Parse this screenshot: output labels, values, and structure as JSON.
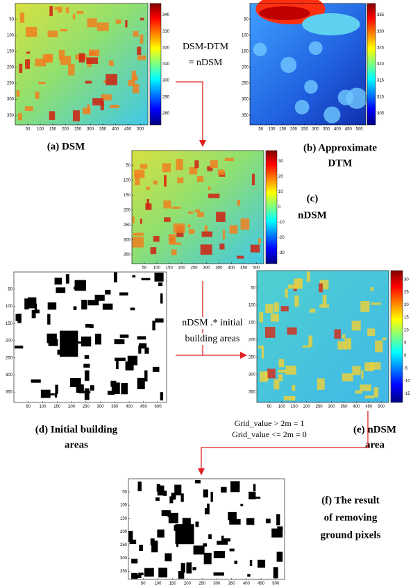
{
  "labels": {
    "dsm_dtm": "DSM-DTM",
    "eq_ndsm": "= nDSM",
    "mult1": "nDSM .* initial",
    "mult2": "building areas",
    "rule1": "Grid_value  > 2m = 1",
    "rule2": "Grid_value  <= 2m = 0"
  },
  "panels": [
    {
      "caption": [
        "(a) DSM"
      ],
      "xticks": [
        50,
        100,
        150,
        200,
        250,
        300,
        350,
        400,
        450,
        500
      ],
      "yticks": [
        50,
        100,
        150,
        200,
        250,
        300,
        350
      ],
      "colorbar": [
        340,
        330,
        320,
        310,
        300,
        290,
        280
      ]
    },
    {
      "caption": [
        "(b)  Approximate",
        "DTM"
      ],
      "xticks": [
        50,
        100,
        150,
        200,
        250,
        300,
        350,
        400,
        450,
        500
      ],
      "yticks": [
        50,
        100,
        150,
        200,
        250,
        300,
        350
      ],
      "colorbar": [
        335,
        330,
        325,
        320,
        315,
        310,
        305
      ]
    },
    {
      "caption": [
        "(c)",
        "nDSM"
      ],
      "xticks": [
        50,
        100,
        150,
        200,
        250,
        300,
        350,
        400,
        450,
        500
      ],
      "yticks": [
        50,
        100,
        150,
        200,
        250,
        300,
        350
      ],
      "colorbar": [
        30,
        20,
        10,
        0,
        -10,
        -20,
        -30
      ]
    },
    {
      "caption": [
        "(d) Initial building",
        "areas"
      ],
      "xticks": [
        50,
        100,
        150,
        200,
        250,
        300,
        350,
        400,
        450,
        500
      ],
      "yticks": [
        50,
        100,
        150,
        200,
        250,
        300,
        350
      ]
    },
    {
      "caption": [
        "(e) nDSM",
        "area"
      ],
      "xticks": [
        50,
        100,
        150,
        200,
        250,
        300,
        350,
        400,
        450,
        500
      ],
      "yticks": [
        50,
        100,
        150,
        200,
        250,
        300,
        350
      ],
      "colorbar": [
        30,
        25,
        20,
        15,
        10,
        5,
        0,
        -5,
        -10,
        -15
      ]
    },
    {
      "caption": [
        "(f) The result",
        "of removing",
        "ground pixels"
      ],
      "xticks": [
        50,
        100,
        150,
        200,
        250,
        300,
        350,
        400,
        450,
        500
      ],
      "yticks": [
        50,
        100,
        150,
        200,
        250,
        300,
        350
      ]
    }
  ]
}
